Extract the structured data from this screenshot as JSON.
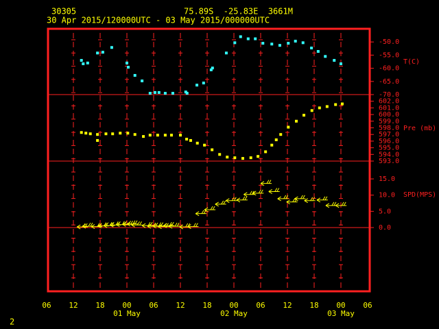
{
  "header": {
    "station": "30305",
    "location": "75.89S  -25.83E  3661M",
    "period": "30 Apr 2015/120000UTC - 03 May 2015/000000UTC",
    "page": "2"
  },
  "x_axis": {
    "xlim": [
      0,
      72
    ],
    "xticks": [
      {
        "value": 0,
        "label": "06"
      },
      {
        "value": 6,
        "label": "12"
      },
      {
        "value": 12,
        "label": "18"
      },
      {
        "value": 18,
        "label": "00"
      },
      {
        "value": 24,
        "label": "06"
      },
      {
        "value": 30,
        "label": "12"
      },
      {
        "value": 36,
        "label": "18"
      },
      {
        "value": 42,
        "label": "00"
      },
      {
        "value": 48,
        "label": "06"
      },
      {
        "value": 54,
        "label": "12"
      },
      {
        "value": 60,
        "label": "18"
      },
      {
        "value": 66,
        "label": "00"
      },
      {
        "value": 72,
        "label": "06"
      }
    ],
    "day_labels": [
      {
        "value": 18,
        "label": "01 May"
      },
      {
        "value": 42,
        "label": "02 May"
      },
      {
        "value": 66,
        "label": "03 May"
      }
    ]
  },
  "chart_data": [
    {
      "type": "scatter",
      "label": "T(C)",
      "color": "#33ffff",
      "ylim": [
        -70,
        -45
      ],
      "yticks": [
        {
          "value": -50,
          "label": "-50.0"
        },
        {
          "value": -55,
          "label": "-55.0"
        },
        {
          "value": -60,
          "label": "-60.0"
        },
        {
          "value": -65,
          "label": "-65.0"
        },
        {
          "value": -70,
          "label": "-70.0"
        }
      ],
      "x": [
        7.8,
        8.2,
        9.2,
        11.4,
        12.6,
        14.6,
        18.0,
        18.3,
        19.8,
        21.4,
        23.2,
        24.3,
        25.2,
        26.6,
        28.3,
        31.2,
        31.5,
        33.7,
        35.2,
        36.9,
        37.2,
        40.3,
        42.2,
        43.5,
        45.2,
        46.8,
        48.5,
        50.5,
        52.3,
        54.2,
        55.8,
        57.5,
        59.4,
        60.9,
        62.5,
        64.5,
        66.0
      ],
      "values": [
        -57.0,
        -58.3,
        -58.0,
        -54.2,
        -53.9,
        -52.1,
        -58.0,
        -59.6,
        -62.7,
        -64.8,
        -69.5,
        -69.2,
        -69.2,
        -69.5,
        -69.5,
        -69.0,
        -69.5,
        -66.4,
        -65.6,
        -60.6,
        -59.9,
        -54.2,
        -50.3,
        -48.0,
        -48.8,
        -48.8,
        -50.5,
        -50.8,
        -51.3,
        -50.5,
        -49.7,
        -50.3,
        -52.3,
        -53.6,
        -55.5,
        -57.0,
        -58.3
      ]
    },
    {
      "type": "scatter",
      "label": "Pre (mb)",
      "color": "#ffff00",
      "ylim": [
        593,
        603
      ],
      "yticks": [
        {
          "value": 602,
          "label": "602.0"
        },
        {
          "value": 601,
          "label": "601.0"
        },
        {
          "value": 600,
          "label": "600.0"
        },
        {
          "value": 599,
          "label": "599.0"
        },
        {
          "value": 598,
          "label": "598.0"
        },
        {
          "value": 597,
          "label": "597.0"
        },
        {
          "value": 596,
          "label": "596.0"
        },
        {
          "value": 595,
          "label": "595.0"
        },
        {
          "value": 594,
          "label": "594.0"
        },
        {
          "value": 593,
          "label": "593.0"
        }
      ],
      "x": [
        7.8,
        8.8,
        9.8,
        11.4,
        11.4,
        13.3,
        14.8,
        16.5,
        18.2,
        19.8,
        21.7,
        23.2,
        24.9,
        26.6,
        28.0,
        30.0,
        31.4,
        32.3,
        33.8,
        35.4,
        37.1,
        38.8,
        40.5,
        42.2,
        44.0,
        45.8,
        47.4,
        49.1,
        50.5,
        51.5,
        52.5,
        54.2,
        56.0,
        57.7,
        59.5,
        61.2,
        62.9,
        64.8,
        66.3
      ],
      "values": [
        597.3,
        597.2,
        597.1,
        597.0,
        596.1,
        597.1,
        597.1,
        597.2,
        597.2,
        597.0,
        596.7,
        596.9,
        596.9,
        596.9,
        596.9,
        596.9,
        596.3,
        596.1,
        595.7,
        595.4,
        594.7,
        594.0,
        593.6,
        593.5,
        593.4,
        593.5,
        593.7,
        594.4,
        595.4,
        596.2,
        597.0,
        598.1,
        599.0,
        599.9,
        600.6,
        601.0,
        601.2,
        601.5,
        601.6
      ]
    },
    {
      "type": "wind",
      "label": "SPD(MPS)",
      "color": "#ffff00",
      "ylim": [
        0,
        20.5
      ],
      "yticks": [
        {
          "value": 15,
          "label": "15.0"
        },
        {
          "value": 10,
          "label": "10.0"
        },
        {
          "value": 5,
          "label": "5.0"
        },
        {
          "value": 0,
          "label": "0.0"
        }
      ],
      "x": [
        6.8,
        8.0,
        10.0,
        11.5,
        12.8,
        14.2,
        15.6,
        17.0,
        18.0,
        19.0,
        21.4,
        22.6,
        23.8,
        25.0,
        26.2,
        27.4,
        29.8,
        31.6,
        33.4,
        35.4,
        37.8,
        40.2,
        42.6,
        44.2,
        46.2,
        48.0,
        49.8,
        51.8,
        53.8,
        55.6,
        57.8,
        60.6,
        62.6,
        64.8
      ],
      "values": [
        0.2,
        0.4,
        0.3,
        0.5,
        0.6,
        0.8,
        0.9,
        1.0,
        1.1,
        0.8,
        0.6,
        0.4,
        0.5,
        0.3,
        0.6,
        0.4,
        0.2,
        0.3,
        4.3,
        5.5,
        7.2,
        8.3,
        8.5,
        10.2,
        10.6,
        13.6,
        11.1,
        8.9,
        7.9,
        8.9,
        8.3,
        8.5,
        6.8,
        6.8
      ]
    }
  ]
}
